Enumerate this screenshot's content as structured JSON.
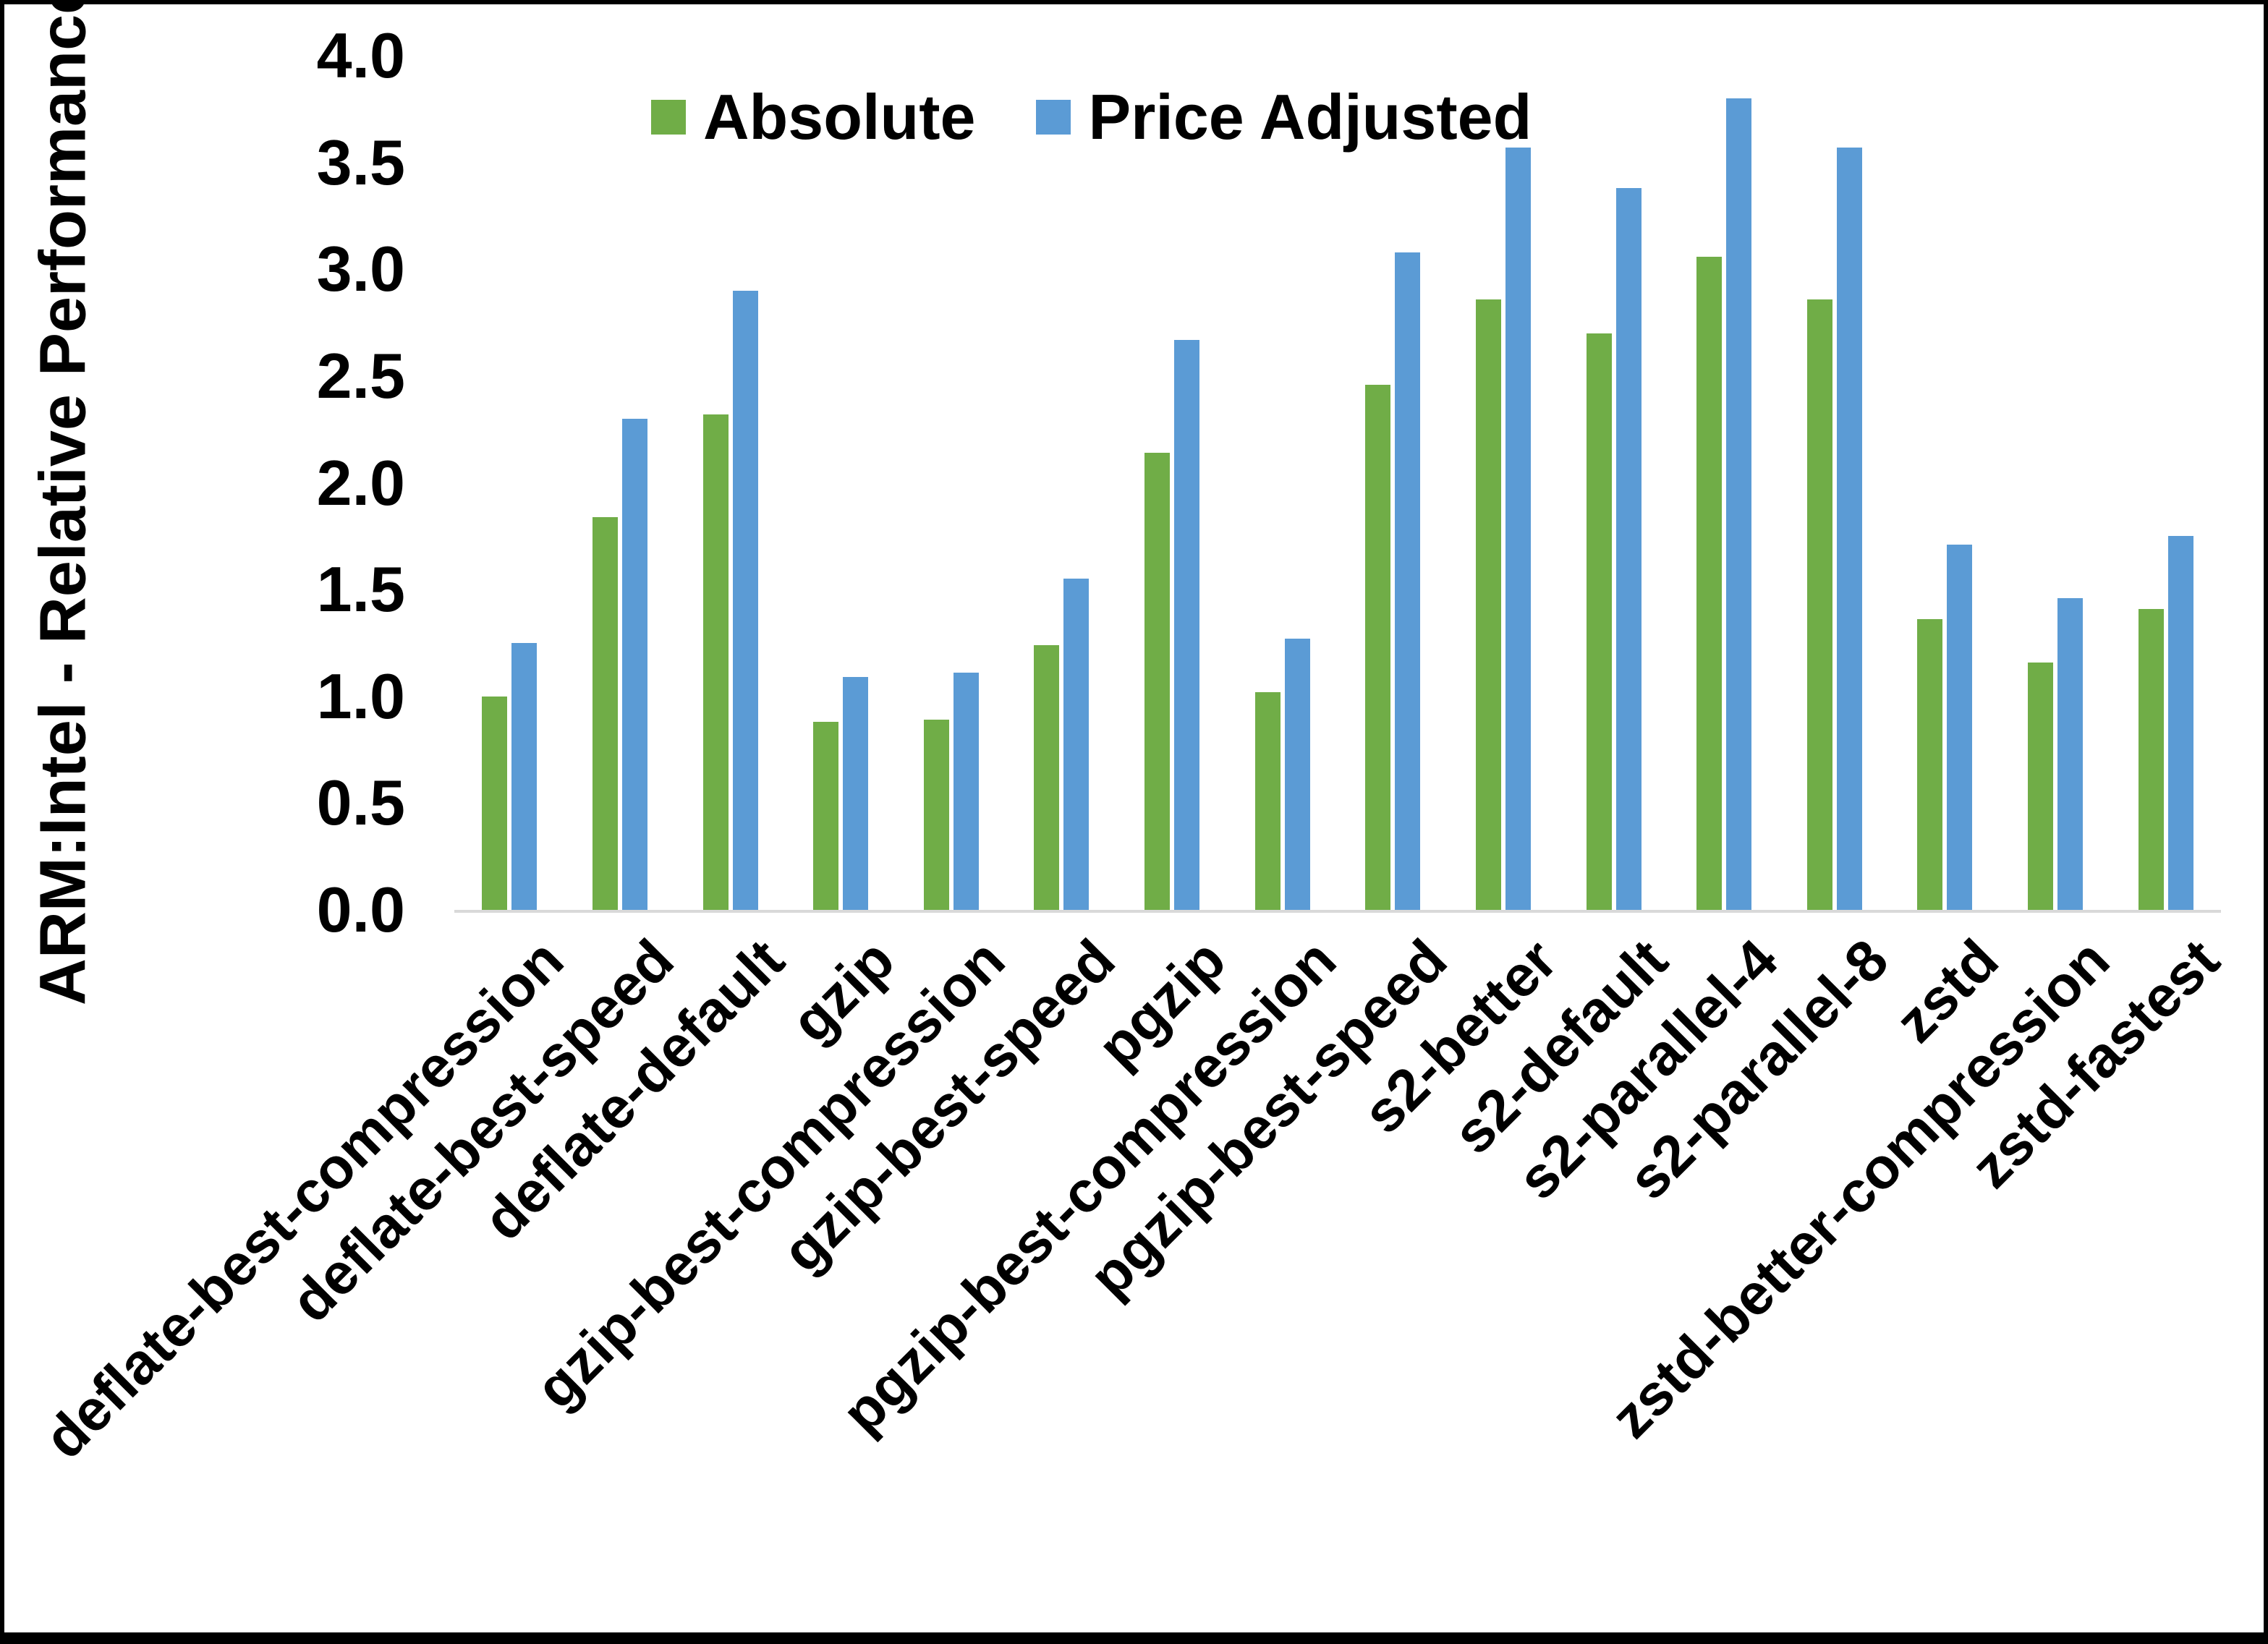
{
  "figure": {
    "background_color": "#ffffff",
    "border_color": "#000000",
    "axis_line_color": "#D9D9D9",
    "text_color": "#000000"
  },
  "chart_data": {
    "type": "bar",
    "title": "",
    "xlabel": "",
    "ylabel": "ARM:Intel - Relative Performance",
    "ylim": [
      0.0,
      4.0
    ],
    "ytick_step": 0.5,
    "yticks": [
      "0.0",
      "0.5",
      "1.0",
      "1.5",
      "2.0",
      "2.5",
      "3.0",
      "3.5",
      "4.0"
    ],
    "grid": false,
    "legend_position": "top-center",
    "categories": [
      "deflate-best-compression",
      "deflate-best-speed",
      "deflate-default",
      "gzip",
      "gzip-best-compression",
      "gzip-best-speed",
      "pgzip",
      "pgzip-best-compression",
      "pgzip-best-speed",
      "s2-better",
      "s2-default",
      "s2-parallel-4",
      "s2-parallel-8",
      "zstd",
      "zstd-better-compression",
      "zstd-fastest"
    ],
    "series": [
      {
        "name": "Absolute",
        "color": "#70AD47",
        "values": [
          1.0,
          1.84,
          2.32,
          0.88,
          0.89,
          1.24,
          2.14,
          1.02,
          2.46,
          2.86,
          2.7,
          3.06,
          2.86,
          1.36,
          1.16,
          1.41
        ]
      },
      {
        "name": "Price Adjusted",
        "color": "#5B9BD5",
        "values": [
          1.25,
          2.3,
          2.9,
          1.09,
          1.11,
          1.55,
          2.67,
          1.27,
          3.08,
          3.57,
          3.38,
          3.8,
          3.57,
          1.71,
          1.46,
          1.75
        ]
      }
    ]
  }
}
